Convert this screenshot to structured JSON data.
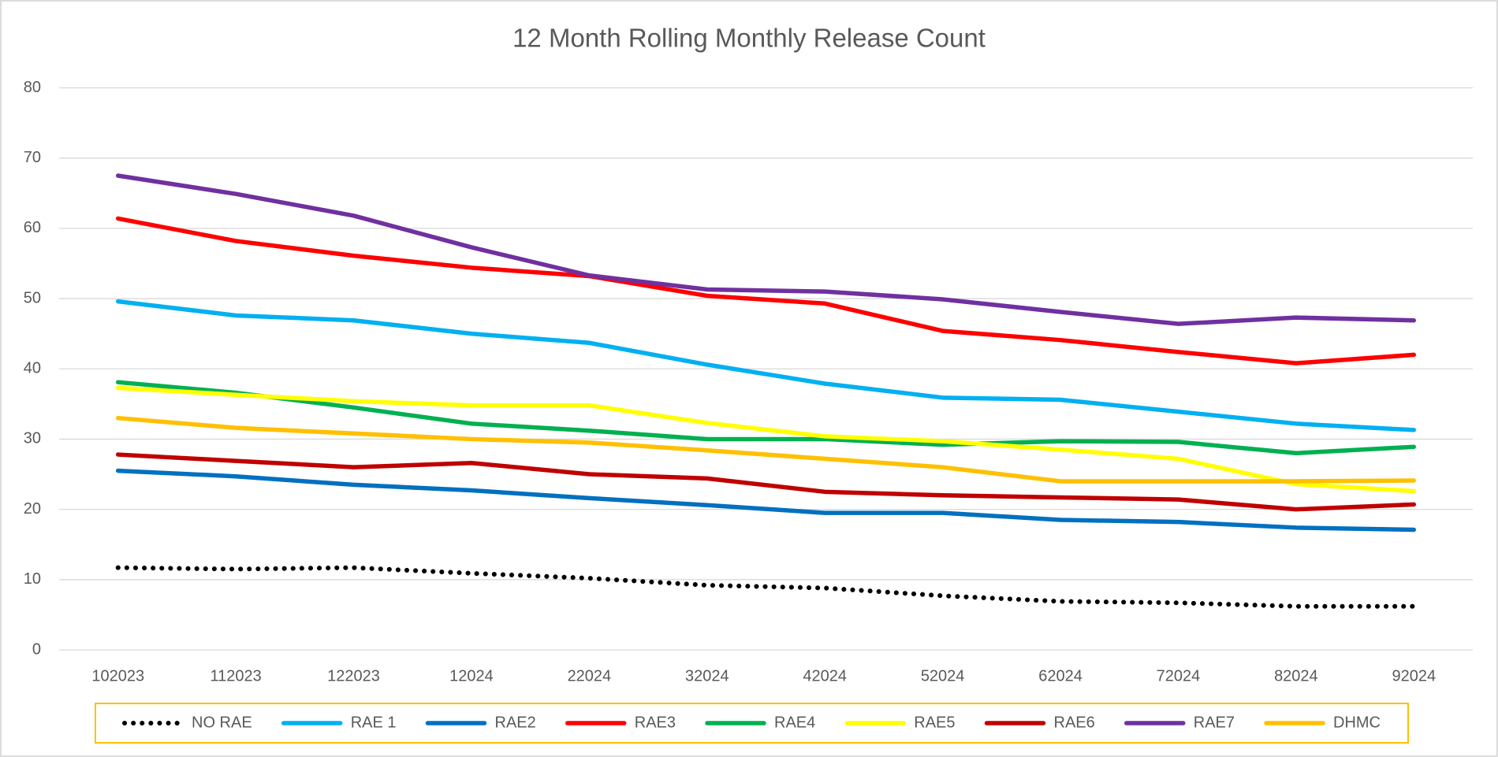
{
  "chart_data": {
    "type": "line",
    "title": "12 Month Rolling Monthly Release Count",
    "categories": [
      "102023",
      "112023",
      "122023",
      "12024",
      "22024",
      "32024",
      "42024",
      "52024",
      "62024",
      "72024",
      "82024",
      "92024"
    ],
    "ylim": [
      0,
      80
    ],
    "yticks": [
      0,
      10,
      20,
      30,
      40,
      50,
      60,
      70,
      80
    ],
    "grid": true,
    "legend": "bottom",
    "series": [
      {
        "name": "NO RAE",
        "color": "#000000",
        "dash": "dotted",
        "values": [
          11.7,
          11.5,
          11.7,
          10.9,
          10.2,
          9.2,
          8.8,
          7.7,
          6.9,
          6.7,
          6.2,
          6.2
        ]
      },
      {
        "name": "RAE 1",
        "color": "#00b0f0",
        "values": [
          49.6,
          47.6,
          46.9,
          45.0,
          43.7,
          40.6,
          37.9,
          35.9,
          35.6,
          33.9,
          32.2,
          31.3
        ]
      },
      {
        "name": "RAE2",
        "color": "#0070c0",
        "values": [
          25.5,
          24.7,
          23.5,
          22.7,
          21.6,
          20.6,
          19.5,
          19.5,
          18.5,
          18.2,
          17.4,
          17.1
        ]
      },
      {
        "name": "RAE3",
        "color": "#ff0000",
        "values": [
          61.4,
          58.2,
          56.1,
          54.4,
          53.2,
          50.4,
          49.3,
          45.4,
          44.1,
          42.4,
          40.8,
          42.0
        ]
      },
      {
        "name": "RAE4",
        "color": "#00b050",
        "values": [
          38.1,
          36.6,
          34.5,
          32.2,
          31.2,
          30.0,
          30.0,
          29.2,
          29.7,
          29.6,
          28.0,
          28.9
        ]
      },
      {
        "name": "RAE5",
        "color": "#ffff00",
        "values": [
          37.3,
          36.3,
          35.4,
          34.8,
          34.8,
          32.3,
          30.4,
          29.7,
          28.5,
          27.2,
          23.6,
          22.6
        ]
      },
      {
        "name": "RAE6",
        "color": "#c00000",
        "values": [
          27.8,
          26.9,
          26.0,
          26.6,
          25.0,
          24.4,
          22.5,
          22.0,
          21.7,
          21.4,
          20.0,
          20.7
        ]
      },
      {
        "name": "RAE7",
        "color": "#7030a0",
        "values": [
          67.5,
          64.9,
          61.8,
          57.3,
          53.3,
          51.3,
          51.0,
          49.9,
          48.1,
          46.4,
          47.3,
          46.9
        ]
      },
      {
        "name": "DHMC",
        "color": "#ffc000",
        "values": [
          33.0,
          31.6,
          30.8,
          30.0,
          29.5,
          28.4,
          27.2,
          26.0,
          24.0,
          24.0,
          24.0,
          24.1
        ]
      }
    ]
  }
}
